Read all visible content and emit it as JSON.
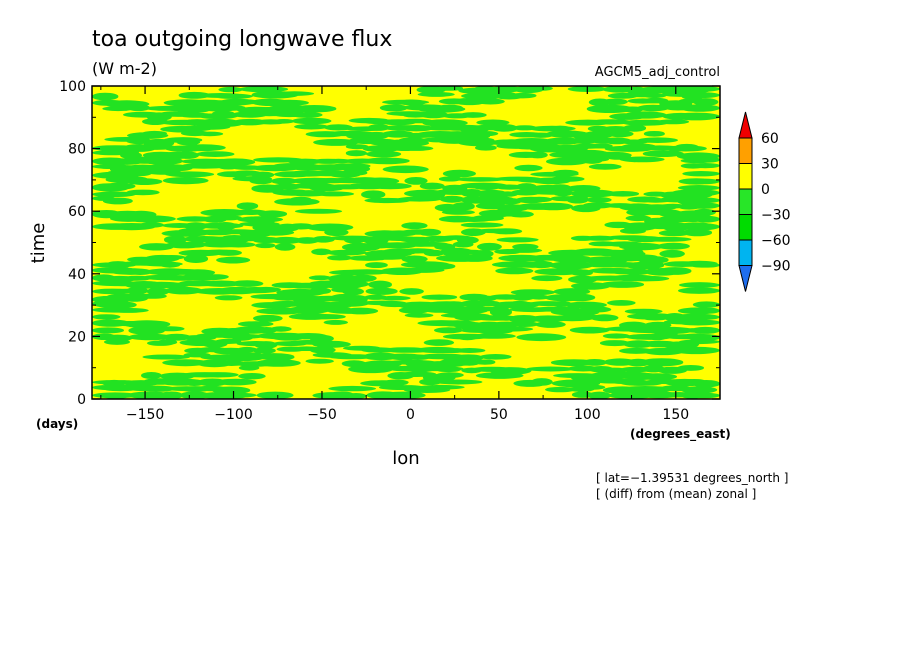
{
  "chart_data": {
    "type": "heatmap",
    "title": "toa outgoing longwave flux",
    "subtitle": "(W m-2)",
    "dataset_label": "AGCM5_adj_control",
    "xlabel": "lon",
    "xunits": "(degrees_east)",
    "ylabel": "time",
    "yunits": "(days)",
    "xlim": [
      -180,
      175
    ],
    "ylim": [
      0,
      100
    ],
    "xticks": [
      -150,
      -100,
      -50,
      0,
      50,
      100,
      150
    ],
    "yticks": [
      0,
      20,
      40,
      60,
      80,
      100
    ],
    "xtick_labels": [
      "−150",
      "−100",
      "−50",
      "0",
      "50",
      "100",
      "150"
    ],
    "ytick_labels": [
      "0",
      "20",
      "40",
      "60",
      "80",
      "100"
    ],
    "colorbar": {
      "levels": [
        -90,
        -60,
        -30,
        0,
        30,
        60
      ],
      "labels": [
        "−90",
        "−60",
        "−30",
        "0",
        "30",
        "60"
      ],
      "colors": [
        "#1e6ef0",
        "#00b4f0",
        "#00dc00",
        "#28e628",
        "#ffff00",
        "#ffa000",
        "#f00000"
      ]
    },
    "fill_colors": {
      "below_zero": "#22e222",
      "above_zero": "#ffff00"
    },
    "notes": [
      "[ lat=−1.39531 degrees_north ]",
      "[ (diff) from (mean) zonal ]"
    ]
  }
}
